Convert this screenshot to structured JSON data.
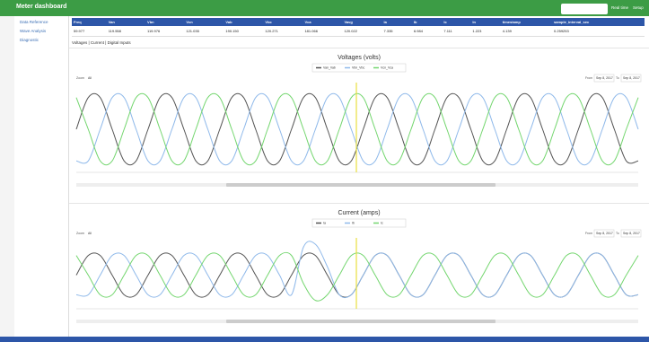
{
  "header": {
    "title": "Meter dashboard",
    "links": [
      "Real time",
      "Setup"
    ]
  },
  "sidebar": {
    "items": [
      "Data Reference",
      "Wave Analysis",
      "Diagnostic"
    ]
  },
  "table": {
    "columns": [
      "Freq",
      "Van",
      "Vbn",
      "Vcn",
      "Vab",
      "Vbc",
      "Vca",
      "Vavg",
      "Ia",
      "Ib",
      "Ic",
      "In",
      "timestamp",
      "sample_interval_sec"
    ],
    "rows": [
      [
        "59.977",
        "119.558",
        "119.976",
        "121.035",
        "190.150",
        "120.271",
        "181.066",
        "120.022",
        "7.335",
        "6.984",
        "7.111",
        "1.223",
        "4.139",
        "0.259253"
      ]
    ]
  },
  "tabs": "Voltages | Current | Digital Inputs",
  "controls": {
    "zoom": "Zoom",
    "zoom_all": "All",
    "from": "From",
    "from_date": "Sep 8, 2017",
    "to": "To",
    "to_date": "Sep 8, 2017"
  },
  "chart_data": [
    {
      "type": "line",
      "title": "Voltages (volts)",
      "ylim": [
        -200,
        200
      ],
      "series": [
        {
          "name": "Van_Vab",
          "color": "#555555",
          "values": [
            0,
            147,
            147,
            0,
            -147,
            -147,
            0,
            147,
            147,
            0,
            -147,
            -147,
            0,
            147,
            147,
            0,
            -147,
            -147,
            0,
            147,
            147,
            0,
            -147,
            -147,
            0,
            147,
            147,
            0,
            -147,
            -147,
            0,
            147,
            147,
            0,
            -147,
            -147,
            0,
            147,
            147,
            0,
            -147,
            -147,
            0,
            147,
            147,
            0,
            -147,
            -147
          ]
        },
        {
          "name": "Vbn_Vbc",
          "color": "#8fb9ea",
          "values": [
            -147,
            -147,
            0,
            147,
            147,
            0,
            -147,
            -147,
            0,
            147,
            147,
            0,
            -147,
            -147,
            0,
            147,
            147,
            0,
            -147,
            -147,
            0,
            147,
            147,
            0,
            -147,
            -147,
            0,
            147,
            147,
            0,
            -147,
            -147,
            0,
            147,
            147,
            0,
            -147,
            -147,
            0,
            147,
            147,
            0,
            -147,
            -147,
            0,
            147,
            147,
            0
          ]
        },
        {
          "name": "Vcn_Vca",
          "color": "#74d66f",
          "values": [
            147,
            0,
            -147,
            -147,
            0,
            147,
            147,
            0,
            -147,
            -147,
            0,
            147,
            147,
            0,
            -147,
            -147,
            0,
            147,
            147,
            0,
            -147,
            -147,
            0,
            147,
            147,
            0,
            -147,
            -147,
            0,
            147,
            147,
            0,
            -147,
            -147,
            0,
            147,
            147,
            0,
            -147,
            -147,
            0,
            147,
            147,
            0,
            -147,
            -147,
            0,
            147
          ]
        }
      ]
    },
    {
      "type": "line",
      "title": "Current (amps)",
      "ylim": [
        -12,
        12
      ],
      "series": [
        {
          "name": "Ia",
          "color": "#555555",
          "values": [
            0,
            7,
            7,
            0,
            -7,
            -7,
            0,
            7,
            7,
            0,
            -7,
            -7,
            0,
            7,
            7,
            0,
            -7,
            -7,
            0,
            7,
            7,
            0,
            -7,
            -7,
            0,
            7,
            7,
            0,
            -7,
            -7,
            0,
            7,
            7,
            0,
            -7,
            -7,
            0,
            7,
            7,
            0,
            -7,
            -7,
            0,
            7,
            7,
            0,
            -7,
            -7
          ]
        },
        {
          "name": "Ib",
          "color": "#8fb9ea",
          "values": [
            -7,
            -7,
            0,
            7,
            7,
            0,
            -7,
            -7,
            0,
            7,
            7,
            0,
            -7,
            -7,
            0,
            7,
            7,
            0,
            -7,
            10,
            11,
            3,
            -7,
            -7,
            0,
            7,
            7,
            0,
            -7,
            -7,
            0,
            7,
            7,
            0,
            -7,
            -7,
            0,
            7,
            7,
            0,
            -7,
            -7,
            0,
            7,
            7,
            0,
            -7,
            -7
          ]
        },
        {
          "name": "Ic",
          "color": "#74d66f",
          "values": [
            7,
            0,
            -7,
            -7,
            0,
            7,
            7,
            0,
            -7,
            -7,
            0,
            7,
            7,
            0,
            -7,
            -7,
            0,
            7,
            7,
            -3,
            -9,
            -7,
            0,
            7,
            7,
            0,
            -7,
            -7,
            0,
            7,
            7,
            0,
            -7,
            -7,
            0,
            7,
            7,
            0,
            -7,
            -7,
            0,
            7,
            7,
            0,
            -7,
            -7,
            0,
            7
          ]
        }
      ]
    }
  ]
}
